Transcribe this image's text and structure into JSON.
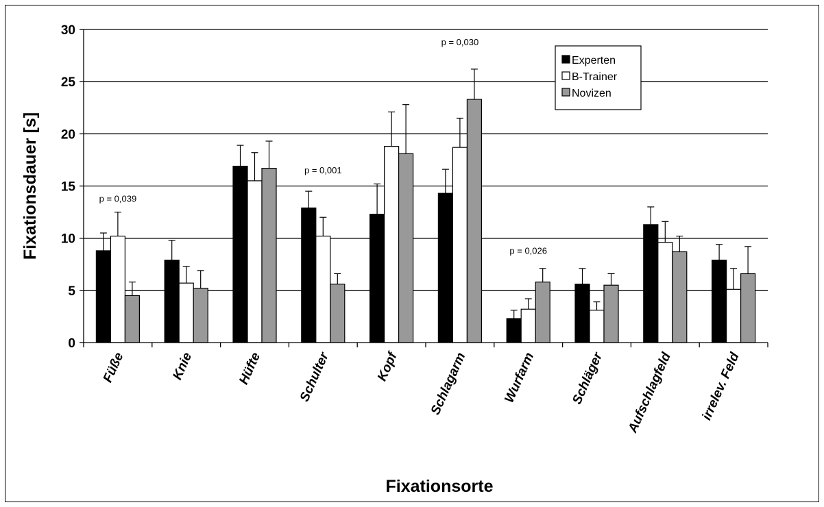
{
  "chart_data": {
    "type": "bar",
    "title": "",
    "xlabel": "Fixationsorte",
    "ylabel": "Fixationsdauer [s]",
    "ylim": [
      0,
      30
    ],
    "yticks": [
      0,
      5,
      10,
      15,
      20,
      25,
      30
    ],
    "grid": true,
    "legend_position": "top-right",
    "categories": [
      "Füße",
      "Knie",
      "Hüfte",
      "Schulter",
      "Kopf",
      "Schlagarm",
      "Wurfarm",
      "Schläger",
      "Aufschlagfeld",
      "irrelev. Feld"
    ],
    "series": [
      {
        "name": "Experten",
        "color": "#000000",
        "values": [
          8.8,
          7.9,
          16.9,
          12.9,
          12.3,
          14.3,
          2.3,
          5.6,
          11.3,
          7.9
        ],
        "errors": [
          1.7,
          1.9,
          2.0,
          1.6,
          2.9,
          2.3,
          0.8,
          1.5,
          1.7,
          1.5
        ]
      },
      {
        "name": "B-Trainer",
        "color": "#ffffff",
        "values": [
          10.2,
          5.7,
          15.5,
          10.2,
          18.8,
          18.7,
          3.2,
          3.1,
          9.6,
          5.1
        ],
        "errors": [
          2.3,
          1.6,
          2.7,
          1.8,
          3.3,
          2.8,
          1.0,
          0.8,
          2.0,
          2.0
        ]
      },
      {
        "name": "Novizen",
        "color": "#999999",
        "values": [
          4.5,
          5.2,
          16.7,
          5.6,
          18.1,
          23.3,
          5.8,
          5.5,
          8.7,
          6.6
        ],
        "errors": [
          1.3,
          1.7,
          2.6,
          1.0,
          4.7,
          2.9,
          1.3,
          1.1,
          1.5,
          2.6
        ]
      }
    ],
    "annotations": [
      {
        "text": "p = 0,039",
        "category_index": 0,
        "y": 13.5
      },
      {
        "text": "p = 0,001",
        "category_index": 3,
        "y": 16.2
      },
      {
        "text": "p = 0,030",
        "category_index": 5,
        "y": 28.5
      },
      {
        "text": "p = 0,026",
        "category_index": 6,
        "y": 8.5
      }
    ]
  }
}
